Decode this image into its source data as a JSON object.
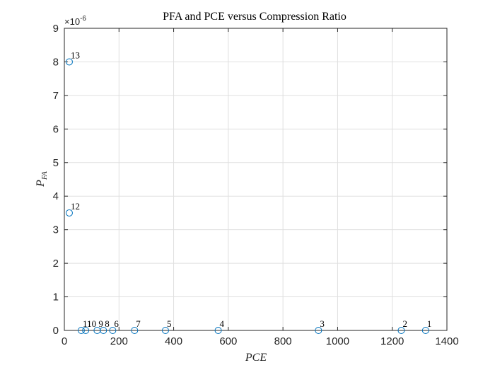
{
  "chart_data": {
    "type": "scatter",
    "title": "PFA and PCE versus Compression Ratio",
    "xlabel": "PCE",
    "ylabel_main": "P",
    "ylabel_sub": "FA",
    "xlim": [
      0,
      1400
    ],
    "ylim": [
      0,
      9
    ],
    "y_exponent_label": "×10",
    "y_exponent_power": "-6",
    "grid": true,
    "marker": "open-circle",
    "marker_color": "#0072BD",
    "grid_color": "#dfdfdf",
    "axis_color": "#262626",
    "x_ticks": [
      {
        "value": 0,
        "label": "0"
      },
      {
        "value": 200,
        "label": "200"
      },
      {
        "value": 400,
        "label": "400"
      },
      {
        "value": 600,
        "label": "600"
      },
      {
        "value": 800,
        "label": "800"
      },
      {
        "value": 1000,
        "label": "1000"
      },
      {
        "value": 1200,
        "label": "1200"
      },
      {
        "value": 1400,
        "label": "1400"
      }
    ],
    "y_ticks": [
      {
        "value": 0,
        "label": "0"
      },
      {
        "value": 1,
        "label": "1"
      },
      {
        "value": 2,
        "label": "2"
      },
      {
        "value": 3,
        "label": "3"
      },
      {
        "value": 4,
        "label": "4"
      },
      {
        "value": 5,
        "label": "5"
      },
      {
        "value": 6,
        "label": "6"
      },
      {
        "value": 7,
        "label": "7"
      },
      {
        "value": 8,
        "label": "8"
      },
      {
        "value": 9,
        "label": "9"
      }
    ],
    "points": [
      {
        "label": "1",
        "x": 1322,
        "y": 0
      },
      {
        "label": "2",
        "x": 1233,
        "y": 0
      },
      {
        "label": "3",
        "x": 930,
        "y": 0
      },
      {
        "label": "4",
        "x": 563,
        "y": 0
      },
      {
        "label": "5",
        "x": 370,
        "y": 0
      },
      {
        "label": "6",
        "x": 177,
        "y": 0
      },
      {
        "label": "7",
        "x": 257,
        "y": 0
      },
      {
        "label": "8",
        "x": 143,
        "y": 0
      },
      {
        "label": "9",
        "x": 120,
        "y": 0
      },
      {
        "label": "10",
        "x": 78,
        "y": 0
      },
      {
        "label": "11",
        "x": 62,
        "y": 0
      },
      {
        "label": "12",
        "x": 18,
        "y": 3.5
      },
      {
        "label": "13",
        "x": 18,
        "y": 8.0
      }
    ]
  }
}
